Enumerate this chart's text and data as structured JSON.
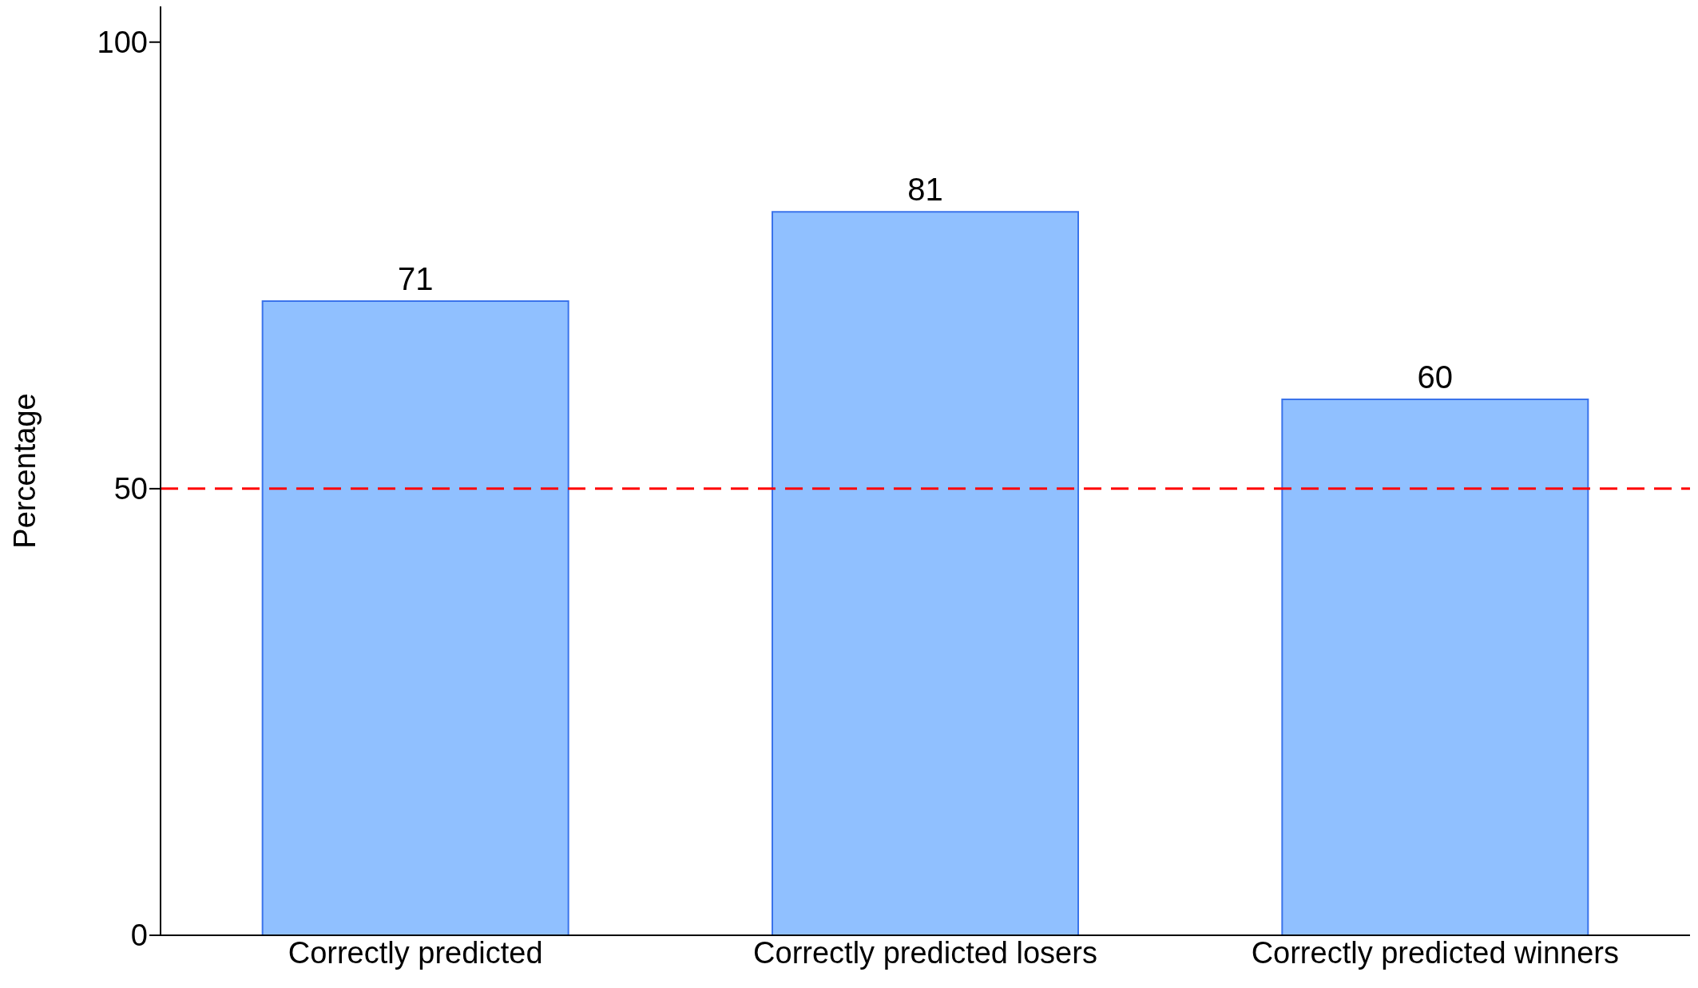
{
  "chart_data": {
    "type": "bar",
    "ylabel": "Percentage",
    "categories": [
      "Correctly predicted",
      "Correctly predicted losers",
      "Correctly predicted winners"
    ],
    "values": [
      71,
      81,
      60
    ],
    "color": "#90c0ff",
    "ylim": [
      0,
      104
    ],
    "yticks": [
      0,
      50,
      100
    ],
    "grid": false,
    "legend": false,
    "data_labels": true,
    "ref_lines": [
      {
        "axis": "y",
        "value": 50,
        "color": "#ff0000",
        "line_style": "dashed"
      }
    ]
  }
}
